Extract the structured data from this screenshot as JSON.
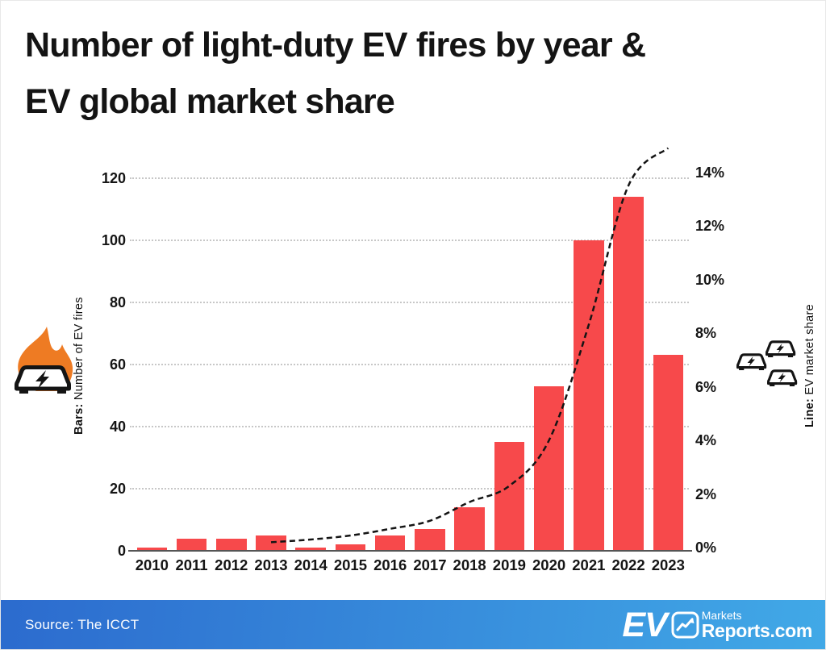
{
  "title": {
    "line1": "Number of light-duty EV fires by year &",
    "line2": "EV global market share"
  },
  "chart_data": {
    "type": "bar",
    "categories": [
      "2010",
      "2011",
      "2012",
      "2013",
      "2014",
      "2015",
      "2016",
      "2017",
      "2018",
      "2019",
      "2020",
      "2021",
      "2022",
      "2023"
    ],
    "series": [
      {
        "name": "Number of EV fires",
        "type": "bar",
        "axis": "left",
        "values": [
          1,
          4,
          4,
          5,
          1,
          2,
          5,
          7,
          14,
          35,
          53,
          100,
          114,
          63
        ],
        "color": "#f7494b"
      },
      {
        "name": "EV market share",
        "type": "line",
        "axis": "right",
        "style": "dashed",
        "color": "#141414",
        "values_pct": [
          null,
          null,
          null,
          0.2,
          0.3,
          0.45,
          0.7,
          1.0,
          1.7,
          2.3,
          4.0,
          8.3,
          13.5,
          14.9
        ]
      }
    ],
    "left_axis": {
      "title_bold": "Bars:",
      "title_rest": " Number of EV fires",
      "ticks": [
        0,
        20,
        40,
        60,
        80,
        100,
        120
      ],
      "range": [
        0,
        130
      ]
    },
    "right_axis": {
      "title_bold": "Line:",
      "title_rest": " EV market share",
      "ticks": [
        "0%",
        "2%",
        "4%",
        "6%",
        "8%",
        "10%",
        "12%",
        "14%"
      ],
      "range_pct": [
        0,
        15
      ]
    },
    "grid": "horizontal dotted",
    "legend_position": "none"
  },
  "icons": {
    "left": "burning-ev-car-icon",
    "right": "ev-cars-icon",
    "logo": "line-chart-icon",
    "flame_color": "#ee7b23"
  },
  "footer": {
    "source": "Source: The ICCT",
    "gradient_left": "#2c6bce",
    "gradient_right": "#41a9e7",
    "logo_ev": "EV",
    "logo_markets": "Markets",
    "logo_reports": "Reports.com"
  }
}
